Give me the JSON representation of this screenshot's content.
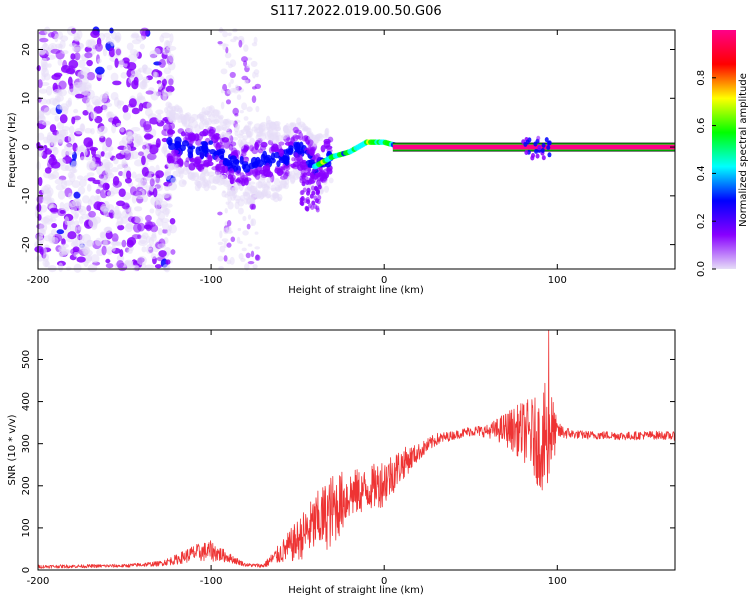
{
  "title": "S117.2022.019.00.50.G06",
  "chart_data": [
    {
      "type": "heatmap",
      "xlabel": "Height of straight line (km)",
      "ylabel": "Frequency (Hz)",
      "xlim": [
        -200,
        168
      ],
      "ylim": [
        -25,
        24
      ],
      "xticks": [
        -200,
        -100,
        0,
        100
      ],
      "yticks": [
        -20,
        -10,
        0,
        10,
        20
      ],
      "colorbar": {
        "label": "Normalized spectral amplitude",
        "ticks": [
          "0.0",
          "0.2",
          "0.4",
          "0.6",
          "0.8"
        ],
        "tick_values": [
          0.0,
          0.2,
          0.4,
          0.6,
          0.8
        ],
        "range": [
          0,
          1
        ],
        "colors": [
          "#e6ddf7",
          "#8800ff",
          "#0000ff",
          "#00ffff",
          "#00ff00",
          "#ffff00",
          "#ff0000",
          "#ff0088"
        ]
      },
      "ridge": {
        "description_points_x": [
          -125,
          -110,
          -100,
          -90,
          -80,
          -70,
          -60,
          -50,
          -40,
          -30,
          -20,
          -10,
          0,
          10,
          50,
          90,
          95,
          168
        ],
        "frequency_hz": [
          1,
          -1,
          0,
          -3,
          -4,
          -2,
          -3,
          0,
          -4,
          -2,
          -1,
          1,
          1,
          0,
          0,
          0,
          0,
          0
        ]
      }
    },
    {
      "type": "line",
      "xlabel": "Height of straight line (km)",
      "ylabel": "SNR (10 * v/v)",
      "xlim": [
        -200,
        168
      ],
      "ylim": [
        0,
        570
      ],
      "xticks": [
        -200,
        -100,
        0,
        100
      ],
      "yticks": [
        0,
        100,
        200,
        300,
        400,
        500
      ],
      "color": "#ee3333",
      "envelope": {
        "x": [
          -200,
          -150,
          -130,
          -120,
          -110,
          -100,
          -90,
          -80,
          -70,
          -60,
          -50,
          -40,
          -30,
          -20,
          -10,
          0,
          10,
          20,
          30,
          40,
          50,
          60,
          70,
          80,
          85,
          90,
          95,
          100,
          110,
          120,
          130,
          140,
          150,
          160,
          168
        ],
        "y": [
          8,
          10,
          15,
          25,
          40,
          45,
          30,
          12,
          10,
          40,
          70,
          110,
          140,
          180,
          190,
          210,
          250,
          280,
          310,
          320,
          330,
          330,
          335,
          330,
          320,
          300,
          320,
          330,
          322,
          320,
          320,
          318,
          320,
          320,
          318
        ],
        "noise": [
          4,
          4,
          6,
          12,
          20,
          25,
          12,
          4,
          5,
          25,
          50,
          70,
          90,
          60,
          50,
          60,
          40,
          20,
          15,
          10,
          12,
          15,
          40,
          70,
          90,
          110,
          150,
          20,
          10,
          10,
          10,
          10,
          10,
          10,
          10
        ]
      }
    }
  ]
}
